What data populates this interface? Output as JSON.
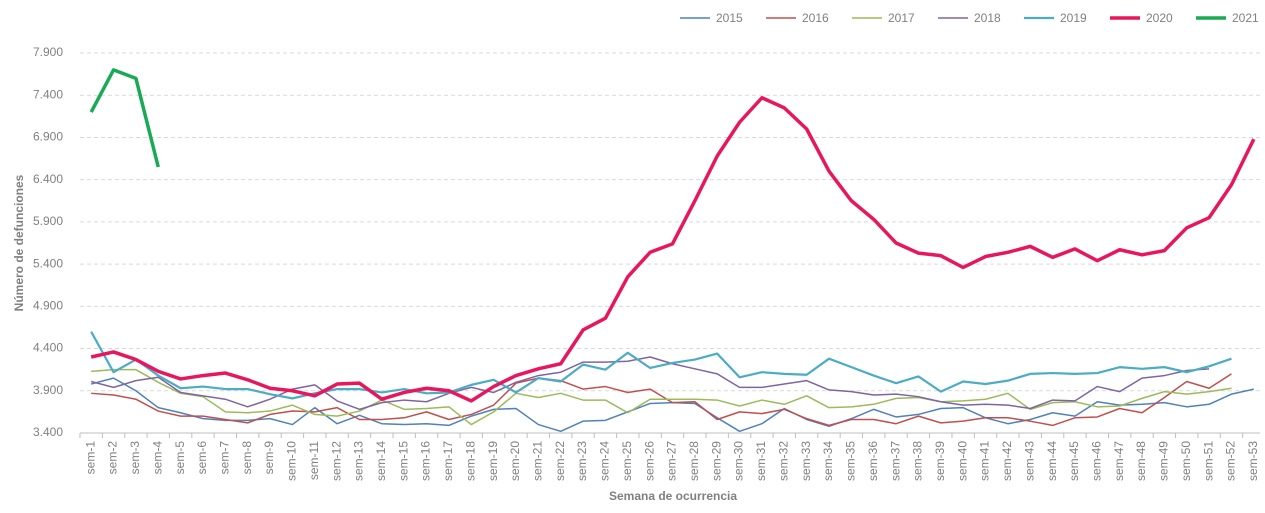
{
  "chart_data": {
    "type": "line",
    "y_label": "Número de defunciones",
    "x_label": "Semana de ocurrencia",
    "categories": [
      "sem-1",
      "sem-2",
      "sem-3",
      "sem-4",
      "sem-5",
      "sem-6",
      "sem-7",
      "sem-8",
      "sem-9",
      "sem-10",
      "sem-11",
      "sem-12",
      "sem-13",
      "sem-14",
      "sem-15",
      "sem-16",
      "sem-17",
      "sem-18",
      "sem-19",
      "sem-20",
      "sem-21",
      "sem-22",
      "sem-23",
      "sem-24",
      "sem-25",
      "sem-26",
      "sem-27",
      "sem-28",
      "sem-29",
      "sem-30",
      "sem-31",
      "sem-32",
      "sem-33",
      "sem-34",
      "sem-35",
      "sem-36",
      "sem-37",
      "sem-38",
      "sem-39",
      "sem-40",
      "sem-41",
      "sem-42",
      "sem-43",
      "sem-44",
      "sem-45",
      "sem-46",
      "sem-47",
      "sem-48",
      "sem-49",
      "sem-50",
      "sem-51",
      "sem-52",
      "sem-53"
    ],
    "ylim": [
      3400,
      7900
    ],
    "yticks": [
      {
        "value": 3400,
        "label": "3.400"
      },
      {
        "value": 3900,
        "label": "3.900"
      },
      {
        "value": 4400,
        "label": "4.400"
      },
      {
        "value": 4900,
        "label": "4.900"
      },
      {
        "value": 5400,
        "label": "5.400"
      },
      {
        "value": 5900,
        "label": "5.900"
      },
      {
        "value": 6400,
        "label": "6.400"
      },
      {
        "value": 6900,
        "label": "6.900"
      },
      {
        "value": 7400,
        "label": "7.400"
      },
      {
        "value": 7900,
        "label": "7.900"
      }
    ],
    "grid": true,
    "legend": "top-right",
    "series": [
      {
        "name": "2015",
        "color": "#4f81bd",
        "width": 1.5,
        "values": [
          3980,
          4050,
          3900,
          3700,
          3640,
          3570,
          3550,
          3550,
          3570,
          3500,
          3700,
          3510,
          3610,
          3510,
          3500,
          3510,
          3490,
          3600,
          3680,
          3690,
          3500,
          3420,
          3540,
          3550,
          3650,
          3750,
          3760,
          3750,
          3580,
          3420,
          3510,
          3690,
          3560,
          3480,
          3570,
          3680,
          3590,
          3620,
          3690,
          3700,
          3580,
          3510,
          3560,
          3640,
          3600,
          3770,
          3730,
          3740,
          3760,
          3710,
          3740,
          3860,
          3920
        ]
      },
      {
        "name": "2016",
        "color": "#c0504d",
        "width": 1.5,
        "values": [
          3870,
          3850,
          3800,
          3660,
          3600,
          3600,
          3560,
          3520,
          3620,
          3660,
          3650,
          3700,
          3560,
          3560,
          3580,
          3650,
          3560,
          3620,
          3730,
          3990,
          4050,
          4020,
          3920,
          3950,
          3880,
          3920,
          3760,
          3770,
          3560,
          3650,
          3630,
          3680,
          3570,
          3490,
          3560,
          3560,
          3510,
          3600,
          3520,
          3540,
          3580,
          3580,
          3540,
          3490,
          3580,
          3590,
          3690,
          3640,
          3820,
          4010,
          3930,
          4100,
          null
        ]
      },
      {
        "name": "2017",
        "color": "#9bbb59",
        "width": 1.5,
        "values": [
          4130,
          4150,
          4150,
          4000,
          3870,
          3830,
          3650,
          3640,
          3660,
          3730,
          3620,
          3600,
          3660,
          3790,
          3680,
          3690,
          3710,
          3500,
          3650,
          3870,
          3820,
          3870,
          3790,
          3790,
          3640,
          3800,
          3800,
          3800,
          3790,
          3720,
          3790,
          3740,
          3840,
          3700,
          3710,
          3740,
          3810,
          3820,
          3770,
          3780,
          3800,
          3870,
          3680,
          3760,
          3770,
          3710,
          3720,
          3810,
          3890,
          3860,
          3890,
          3930,
          null
        ]
      },
      {
        "name": "2018",
        "color": "#8064a2",
        "width": 1.5,
        "values": [
          4010,
          3940,
          4020,
          4060,
          3880,
          3840,
          3800,
          3710,
          3800,
          3920,
          3970,
          3780,
          3680,
          3760,
          3790,
          3770,
          3870,
          3940,
          3880,
          4000,
          4080,
          4120,
          4240,
          4240,
          4250,
          4300,
          4220,
          4160,
          4100,
          3940,
          3940,
          3980,
          4020,
          3910,
          3890,
          3850,
          3860,
          3830,
          3770,
          3730,
          3740,
          3730,
          3690,
          3790,
          3780,
          3950,
          3890,
          4050,
          4080,
          4140,
          4160,
          null,
          null
        ]
      },
      {
        "name": "2019",
        "color": "#4bacc6",
        "width": 2.2,
        "values": [
          4600,
          4120,
          4270,
          4080,
          3930,
          3950,
          3920,
          3920,
          3860,
          3810,
          3870,
          3920,
          3920,
          3880,
          3920,
          3870,
          3880,
          3970,
          4030,
          3880,
          4050,
          4010,
          4210,
          4150,
          4350,
          4170,
          4230,
          4270,
          4340,
          4060,
          4120,
          4100,
          4090,
          4280,
          4180,
          4080,
          3990,
          4070,
          3890,
          4010,
          3980,
          4020,
          4100,
          4110,
          4100,
          4110,
          4180,
          4160,
          4180,
          4120,
          4190,
          4280,
          null
        ]
      },
      {
        "name": "2020",
        "color": "#e8175d",
        "width": 3.5,
        "values": [
          4300,
          4360,
          4270,
          4130,
          4040,
          4080,
          4110,
          4030,
          3930,
          3900,
          3840,
          3980,
          3990,
          3800,
          3880,
          3930,
          3900,
          3780,
          3950,
          4080,
          4160,
          4220,
          4620,
          4760,
          5250,
          5540,
          5640,
          6150,
          6680,
          7080,
          7370,
          7250,
          7000,
          6500,
          6150,
          5930,
          5650,
          5530,
          5500,
          5360,
          5490,
          5540,
          5610,
          5480,
          5580,
          5440,
          5570,
          5510,
          5560,
          5830,
          5950,
          6340,
          6880
        ]
      },
      {
        "name": "2021",
        "color": "#1aaa55",
        "width": 3.5,
        "values": [
          7200,
          7700,
          7600,
          6550,
          null,
          null,
          null,
          null,
          null,
          null,
          null,
          null,
          null,
          null,
          null,
          null,
          null,
          null,
          null,
          null,
          null,
          null,
          null,
          null,
          null,
          null,
          null,
          null,
          null,
          null,
          null,
          null,
          null,
          null,
          null,
          null,
          null,
          null,
          null,
          null,
          null,
          null,
          null,
          null,
          null,
          null,
          null,
          null,
          null,
          null,
          null,
          null,
          null
        ]
      }
    ]
  }
}
